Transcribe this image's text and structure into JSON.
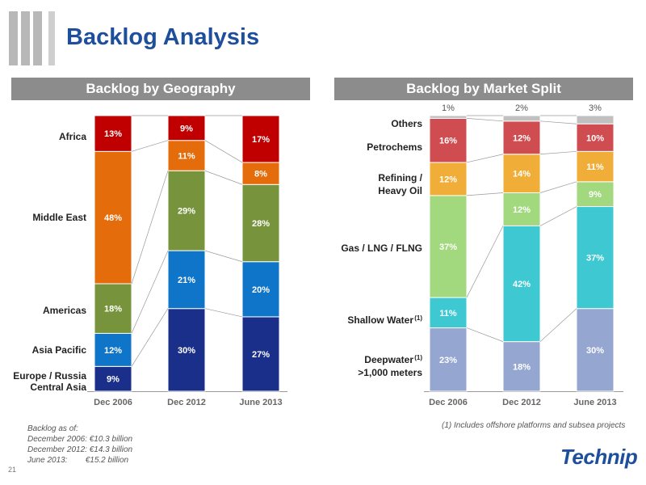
{
  "title": "Backlog Analysis",
  "page_number": "21",
  "logo": "Technip",
  "panels": {
    "left_header": "Backlog by Geography",
    "right_header": "Backlog by Market Split"
  },
  "footnotes": {
    "left": [
      "Backlog as of:",
      "December 2006: €10.3 billion",
      "December 2012: €14.3 billion",
      "June 2013:        €15.2 billion"
    ],
    "right": "(1) Includes offshore platforms and subsea projects"
  },
  "chart_data": [
    {
      "type": "bar",
      "stacked": true,
      "percent": true,
      "title": "Backlog by Geography",
      "categories": [
        "Dec 2006",
        "Dec 2012",
        "June 2013"
      ],
      "series": [
        {
          "name": "Europe / Russia Central Asia",
          "values": [
            9,
            30,
            27
          ],
          "color": "#1a2f8a"
        },
        {
          "name": "Asia Pacific",
          "values": [
            12,
            21,
            20
          ],
          "color": "#0f75c9"
        },
        {
          "name": "Americas",
          "values": [
            18,
            29,
            28
          ],
          "color": "#77943c"
        },
        {
          "name": "Middle East",
          "values": [
            48,
            11,
            8
          ],
          "color": "#e46c0a"
        },
        {
          "name": "Africa",
          "values": [
            13,
            9,
            17
          ],
          "color": "#c00000"
        }
      ],
      "ylim": [
        0,
        100
      ]
    },
    {
      "type": "bar",
      "stacked": true,
      "percent": true,
      "title": "Backlog by Market Split",
      "categories": [
        "Dec 2006",
        "Dec 2012",
        "June 2013"
      ],
      "series": [
        {
          "name": "Deepwater(1) >1,000 meters",
          "values": [
            23,
            18,
            30
          ],
          "color": "#95a7d1"
        },
        {
          "name": "Shallow Water(1)",
          "values": [
            11,
            42,
            37
          ],
          "color": "#3ec8d2"
        },
        {
          "name": "Gas / LNG / FLNG",
          "values": [
            37,
            12,
            9
          ],
          "color": "#a2d97e"
        },
        {
          "name": "Refining / Heavy Oil",
          "values": [
            12,
            14,
            11
          ],
          "color": "#f0ad37"
        },
        {
          "name": "Petrochems",
          "values": [
            16,
            12,
            10
          ],
          "color": "#cf4c50"
        },
        {
          "name": "Others",
          "values": [
            1,
            2,
            3
          ],
          "color": "#c0c0c0"
        }
      ],
      "ylim": [
        0,
        100
      ]
    }
  ],
  "left_labels": {
    "africa": "Africa",
    "middle_east": "Middle East",
    "americas": "Americas",
    "asia_pacific": "Asia Pacific",
    "europe_line1": "Europe / Russia",
    "europe_line2": "Central Asia"
  },
  "right_labels": {
    "others": "Others",
    "petrochems": "Petrochems",
    "refining_line1": "Refining /",
    "refining_line2": "Heavy Oil",
    "gas": "Gas / LNG / FLNG",
    "shallow": "Shallow  Water",
    "shallow_sup": "(1)",
    "deep_line1": "Deepwater",
    "deep_sup": "(1)",
    "deep_line2": ">1,000 meters"
  }
}
